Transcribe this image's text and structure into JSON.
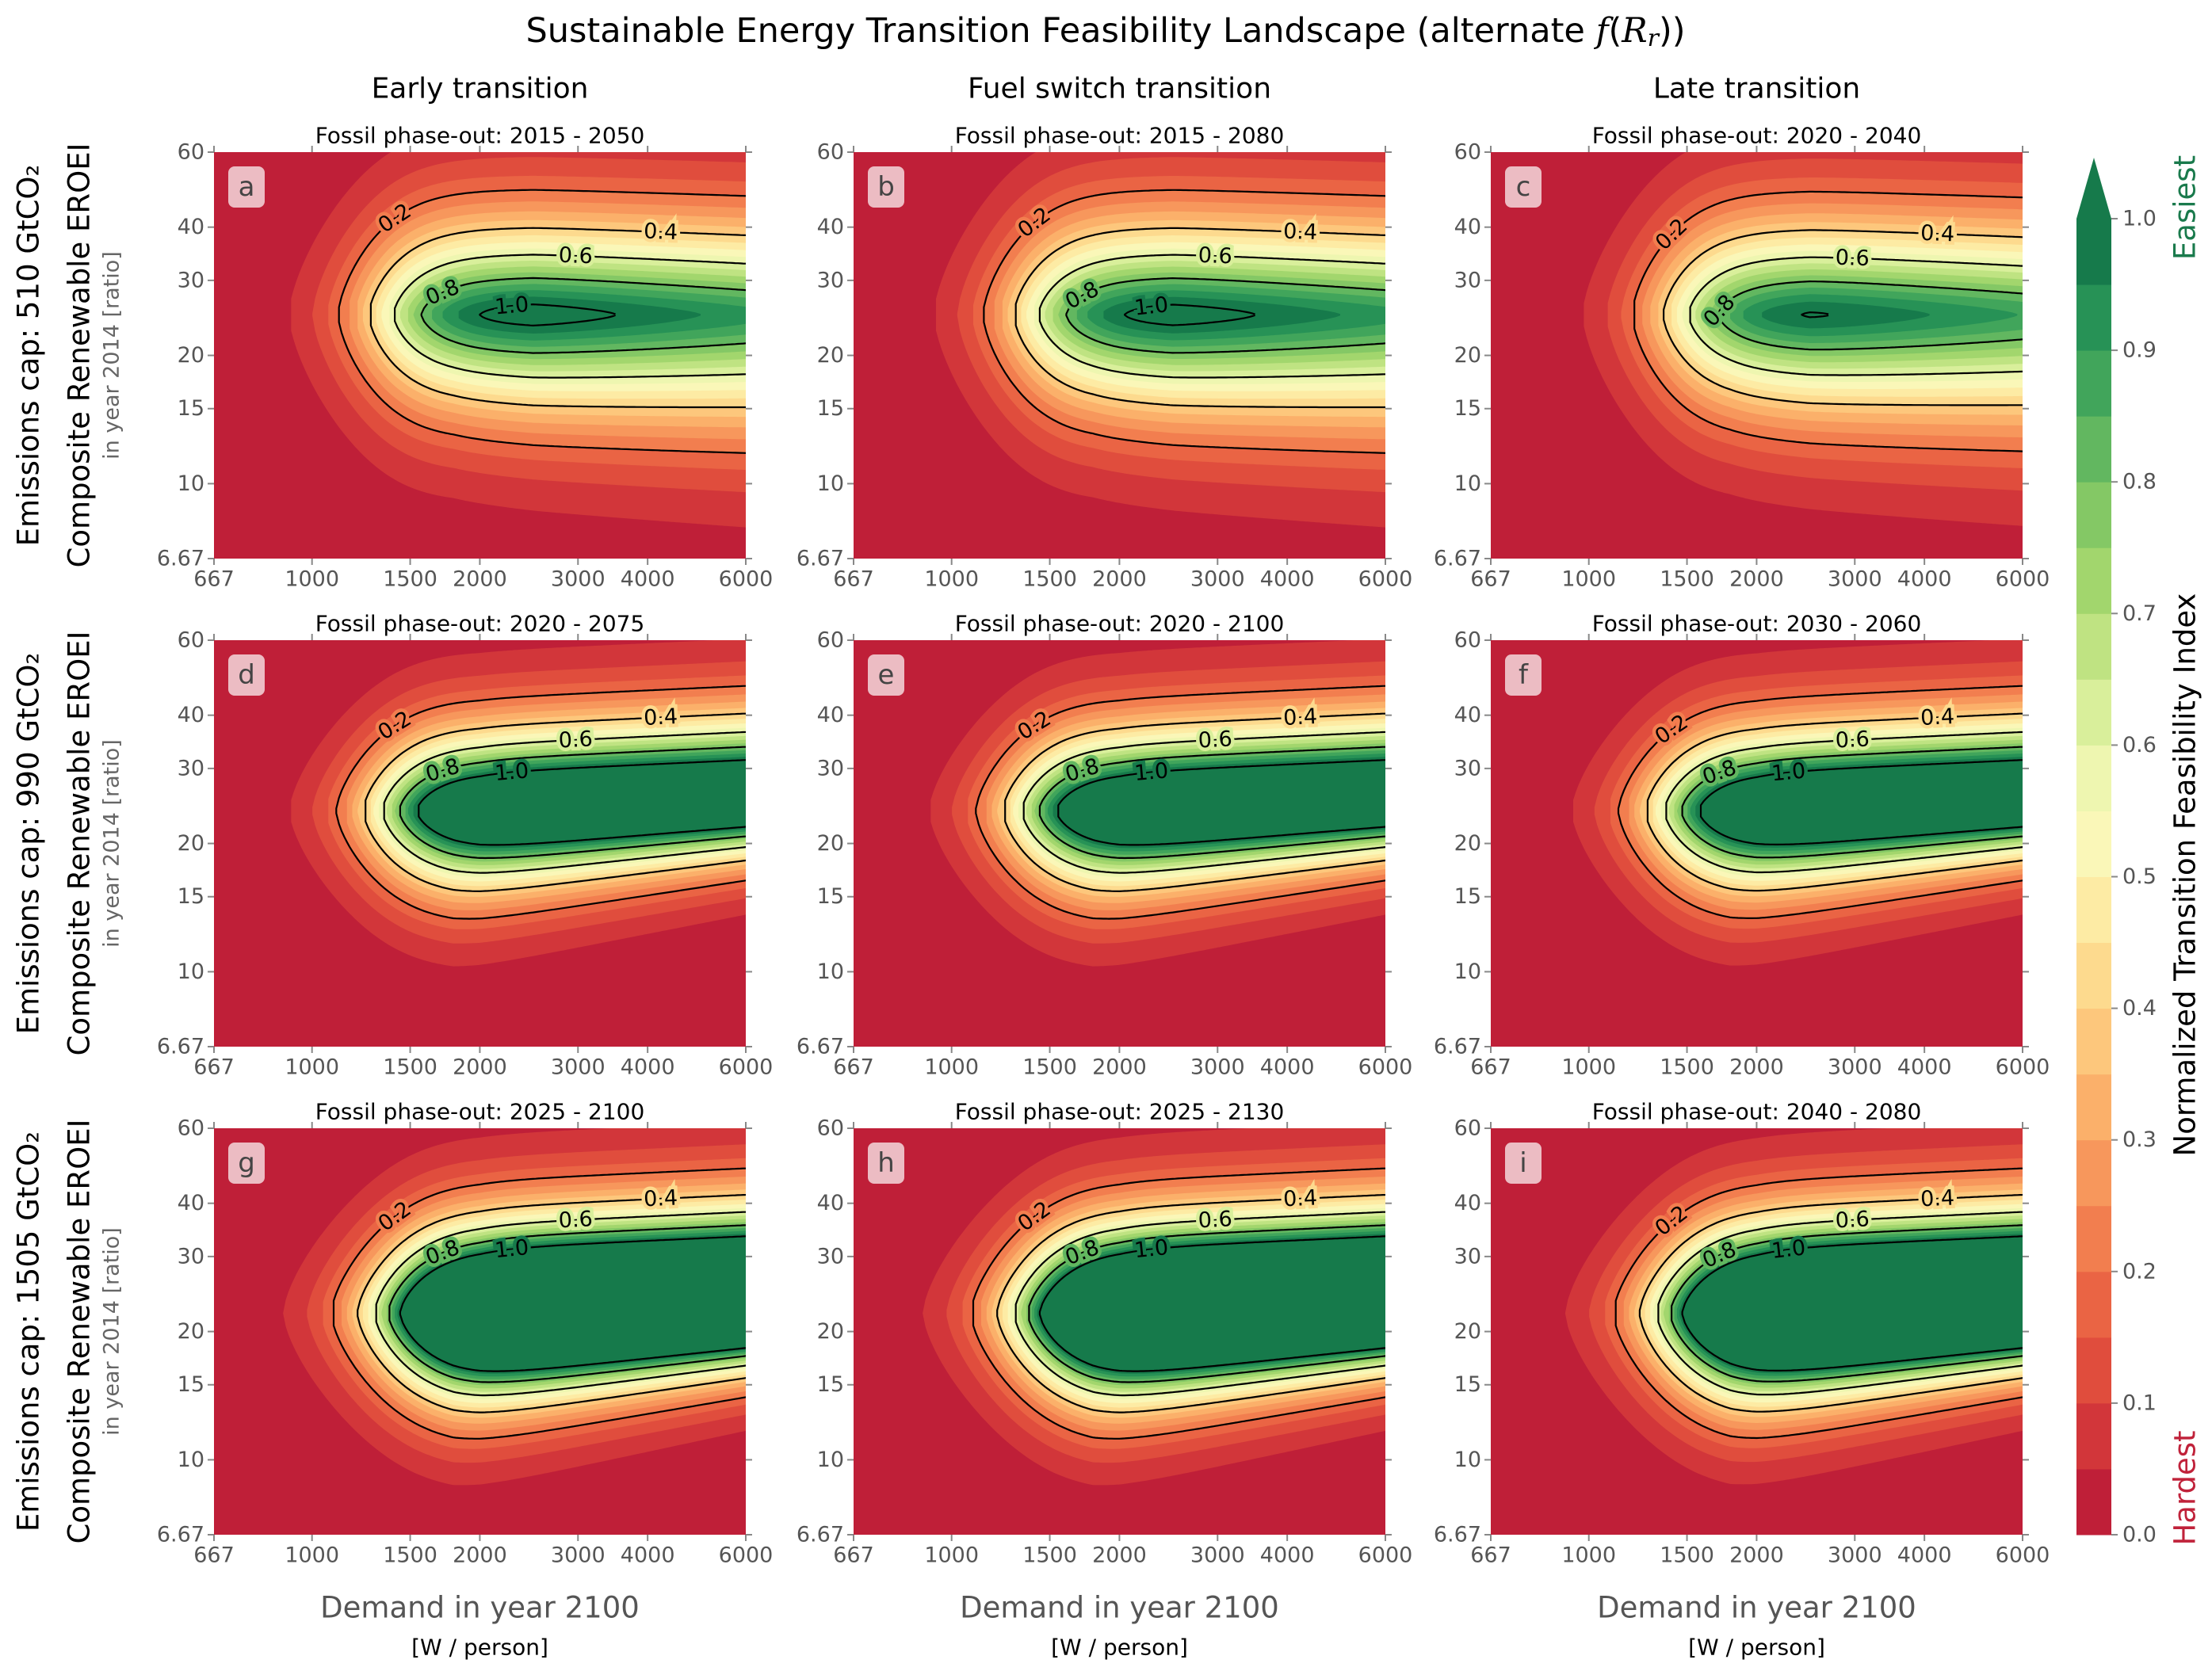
{
  "chart_data": {
    "type": "contour",
    "title_parts": [
      "Sustainable Energy Transition Feasibility Landscape (alternate ",
      "f",
      "(",
      "R",
      "r",
      "))"
    ],
    "column_titles": [
      "Early transition",
      "Fuel switch transition",
      "Late transition"
    ],
    "row_titles": [
      "Emissions cap: 510 GtCO₂",
      "Emissions cap: 990 GtCO₂",
      "Emissions cap: 1505 GtCO₂"
    ],
    "ylabel": "Composite Renewable EROEI",
    "ylabel_note": "in year 2014 [ratio]",
    "xlabel": "Demand in year 2100",
    "xlabel_note": "[W / person]",
    "xlim": [
      667,
      6000
    ],
    "ylim": [
      6.67,
      60
    ],
    "xticks": [
      667,
      1000,
      1500,
      2000,
      3000,
      4000,
      6000
    ],
    "yticks": [
      6.67,
      10,
      15,
      20,
      30,
      40,
      60
    ],
    "log_x": true,
    "log_y": true,
    "contour_levels": [
      0.2,
      0.4,
      0.6,
      0.8,
      {
        "value": 1,
        "label": "1.0"
      }
    ],
    "panels": [
      {
        "label": "a",
        "subtitle": "Fossil phase-out: 2015 - 2050"
      },
      {
        "label": "b",
        "subtitle": "Fossil phase-out: 2015 - 2080"
      },
      {
        "label": "c",
        "subtitle": "Fossil phase-out: 2020 - 2040"
      },
      {
        "label": "d",
        "subtitle": "Fossil phase-out: 2020 - 2075"
      },
      {
        "label": "e",
        "subtitle": "Fossil phase-out: 2020 - 2100"
      },
      {
        "label": "f",
        "subtitle": "Fossil phase-out: 2030 - 2060"
      },
      {
        "label": "g",
        "subtitle": "Fossil phase-out: 2025 - 2100"
      },
      {
        "label": "h",
        "subtitle": "Fossil phase-out: 2025 - 2130"
      },
      {
        "label": "i",
        "subtitle": "Fossil phase-out: 2040 - 2080"
      }
    ],
    "colorbar": {
      "label": "Normalized Transition Feasibility Index",
      "high_text": "Easiest",
      "high_color": "#1a7a4c",
      "low_text": "Hardest",
      "low_color": "#c0223a",
      "lim": [
        0,
        1
      ],
      "ticks": [
        {
          "value": 0,
          "label": "0.0"
        },
        0.1,
        0.2,
        0.3,
        0.4,
        0.5,
        0.6,
        0.7,
        0.8,
        0.9,
        {
          "value": 1,
          "label": "1.0"
        }
      ],
      "levels": [
        0,
        0.05,
        0.1,
        0.15,
        0.2,
        0.25,
        0.3,
        0.35,
        0.4,
        0.45,
        0.5,
        0.55,
        0.6,
        0.65,
        0.7,
        0.75,
        0.8,
        0.85,
        0.9,
        0.95,
        1
      ],
      "colors": [
        "#bf1f38",
        "#d2363a",
        "#e04d3d",
        "#ea6444",
        "#f27e4f",
        "#f7975c",
        "#fbb06a",
        "#fdc77c",
        "#fdda8e",
        "#fdeba4",
        "#faf7b8",
        "#eef6b0",
        "#d9ef9b",
        "#bfe382",
        "#a2d66d",
        "#84c865",
        "#62b760",
        "#41a55b",
        "#279256",
        "#167a4b"
      ]
    }
  }
}
